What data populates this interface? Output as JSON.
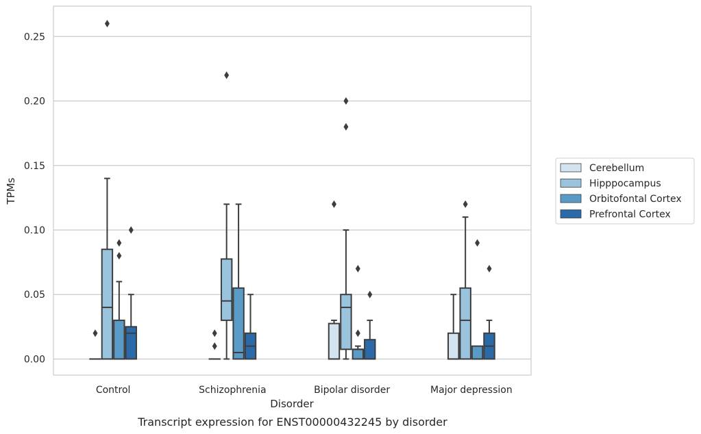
{
  "chart_data": {
    "type": "box",
    "title": "",
    "caption": "Transcript expression for ENST00000432245 by disorder",
    "xlabel": "Disorder",
    "ylabel": "TPMs",
    "ylim": [
      -0.0125,
      0.2735
    ],
    "yticks": [
      0.0,
      0.05,
      0.1,
      0.15,
      0.2,
      0.25
    ],
    "ytick_labels": [
      "0.00",
      "0.05",
      "0.10",
      "0.15",
      "0.20",
      "0.25"
    ],
    "grid": true,
    "legend_position": "right",
    "categories": [
      "Control",
      "Schizophrenia",
      "Bipolar disorder",
      "Major depression"
    ],
    "series": [
      {
        "name": "Cerebellum",
        "color": "#d3e3f0",
        "boxes": [
          {
            "q1": 0.0,
            "median": 0.0,
            "q3": 0.0,
            "whislo": 0.0,
            "whishi": 0.0,
            "fliers": [
              0.02
            ]
          },
          {
            "q1": 0.0,
            "median": 0.0,
            "q3": 0.0,
            "whislo": 0.0,
            "whishi": 0.0,
            "fliers": [
              0.01,
              0.02
            ]
          },
          {
            "q1": 0.0,
            "median": 0.0,
            "q3": 0.0275,
            "whislo": 0.0,
            "whishi": 0.03,
            "fliers": [
              0.12
            ]
          },
          {
            "q1": 0.0,
            "median": 0.0,
            "q3": 0.02,
            "whislo": 0.0,
            "whishi": 0.05,
            "fliers": []
          }
        ]
      },
      {
        "name": "Hipppocampus",
        "color": "#9ac4de",
        "boxes": [
          {
            "q1": 0.0,
            "median": 0.04,
            "q3": 0.085,
            "whislo": 0.0,
            "whishi": 0.14,
            "fliers": [
              0.26
            ]
          },
          {
            "q1": 0.03,
            "median": 0.045,
            "q3": 0.0775,
            "whislo": 0.0,
            "whishi": 0.12,
            "fliers": [
              0.22
            ]
          },
          {
            "q1": 0.0075,
            "median": 0.04,
            "q3": 0.05,
            "whislo": 0.0,
            "whishi": 0.1,
            "fliers": [
              0.18,
              0.2
            ]
          },
          {
            "q1": 0.0,
            "median": 0.03,
            "q3": 0.055,
            "whislo": 0.0,
            "whishi": 0.11,
            "fliers": [
              0.12
            ]
          }
        ]
      },
      {
        "name": "Orbitofontal Cortex",
        "color": "#5a9ac6",
        "boxes": [
          {
            "q1": 0.0,
            "median": 0.0,
            "q3": 0.03,
            "whislo": 0.0,
            "whishi": 0.06,
            "fliers": [
              0.08,
              0.09
            ]
          },
          {
            "q1": 0.0,
            "median": 0.005,
            "q3": 0.055,
            "whislo": 0.0,
            "whishi": 0.12,
            "fliers": []
          },
          {
            "q1": 0.0,
            "median": 0.0075,
            "q3": 0.0075,
            "whislo": 0.0,
            "whishi": 0.01,
            "fliers": [
              0.02,
              0.07
            ]
          },
          {
            "q1": 0.0,
            "median": 0.0,
            "q3": 0.01,
            "whislo": 0.0,
            "whishi": 0.01,
            "fliers": [
              0.09
            ]
          }
        ]
      },
      {
        "name": "Prefrontal Cortex",
        "color": "#2a6aa8",
        "boxes": [
          {
            "q1": 0.0,
            "median": 0.02,
            "q3": 0.025,
            "whislo": 0.0,
            "whishi": 0.05,
            "fliers": [
              0.1
            ]
          },
          {
            "q1": 0.0,
            "median": 0.01,
            "q3": 0.02,
            "whislo": 0.0,
            "whishi": 0.05,
            "fliers": []
          },
          {
            "q1": 0.0,
            "median": 0.0,
            "q3": 0.015,
            "whislo": 0.0,
            "whishi": 0.03,
            "fliers": [
              0.05
            ]
          },
          {
            "q1": 0.0,
            "median": 0.01,
            "q3": 0.02,
            "whislo": 0.0,
            "whishi": 0.03,
            "fliers": [
              0.07
            ]
          }
        ]
      }
    ]
  }
}
